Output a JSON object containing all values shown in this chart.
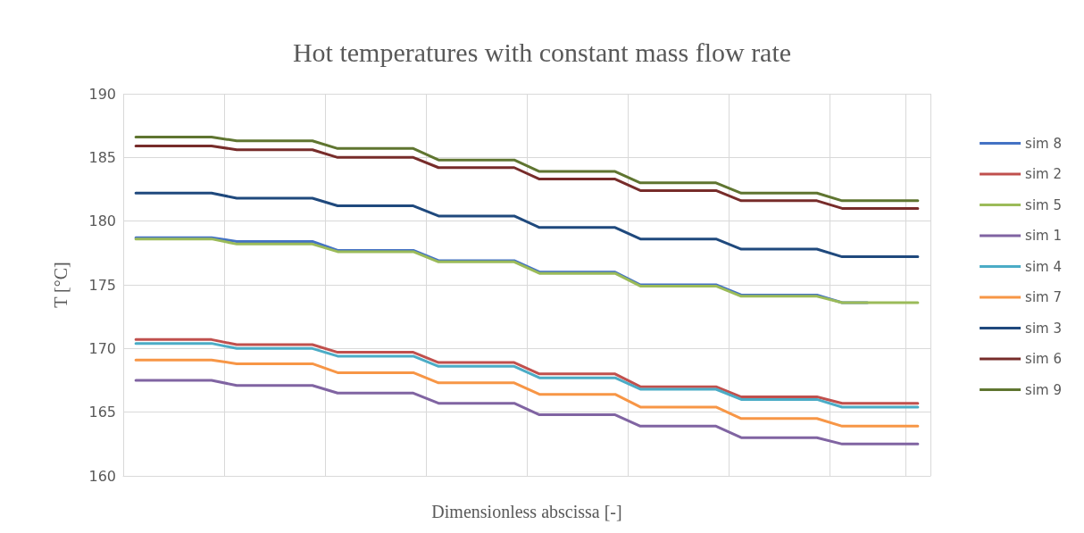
{
  "chart_data": {
    "type": "line",
    "title": "Hot temperatures with constant mass flow rate",
    "xlabel": "Dimensionless abscissa [-]",
    "ylabel": "T [°C]",
    "categories": [
      null,
      null,
      null,
      null,
      null,
      null,
      null,
      null,
      null,
      null,
      null,
      null,
      null,
      null,
      null,
      null,
      null,
      null,
      null,
      null,
      null,
      null,
      null,
      null,
      null,
      null,
      null,
      null,
      null,
      null,
      null,
      null
    ],
    "series": [
      {
        "name": "sim 8",
        "color": "#4472c4",
        "values": [
          178.7,
          178.7,
          178.7,
          178.7,
          178.4,
          178.4,
          178.4,
          178.4,
          177.7,
          177.7,
          177.7,
          177.7,
          176.9,
          176.9,
          176.9,
          176.9,
          176.0,
          176.0,
          176.0,
          176.0,
          175.0,
          175.0,
          175.0,
          175.0,
          174.2,
          174.2,
          174.2,
          174.2,
          173.6,
          173.6,
          null,
          null
        ]
      },
      {
        "name": "sim 2",
        "color": "#c0504d",
        "values": [
          170.7,
          170.7,
          170.7,
          170.7,
          170.3,
          170.3,
          170.3,
          170.3,
          169.7,
          169.7,
          169.7,
          169.7,
          168.9,
          168.9,
          168.9,
          168.9,
          168.0,
          168.0,
          168.0,
          168.0,
          167.0,
          167.0,
          167.0,
          167.0,
          166.2,
          166.2,
          166.2,
          166.2,
          165.7,
          165.7,
          165.7,
          165.7
        ]
      },
      {
        "name": "sim 5",
        "color": "#9bbb59",
        "values": [
          178.6,
          178.6,
          178.6,
          178.6,
          178.2,
          178.2,
          178.2,
          178.2,
          177.6,
          177.6,
          177.6,
          177.6,
          176.8,
          176.8,
          176.8,
          176.8,
          175.9,
          175.9,
          175.9,
          175.9,
          174.9,
          174.9,
          174.9,
          174.9,
          174.1,
          174.1,
          174.1,
          174.1,
          173.6,
          173.6,
          173.6,
          173.6
        ]
      },
      {
        "name": "sim 1",
        "color": "#8064a2",
        "values": [
          167.5,
          167.5,
          167.5,
          167.5,
          167.1,
          167.1,
          167.1,
          167.1,
          166.5,
          166.5,
          166.5,
          166.5,
          165.7,
          165.7,
          165.7,
          165.7,
          164.8,
          164.8,
          164.8,
          164.8,
          163.9,
          163.9,
          163.9,
          163.9,
          163.0,
          163.0,
          163.0,
          163.0,
          162.5,
          162.5,
          162.5,
          162.5
        ]
      },
      {
        "name": "sim 4",
        "color": "#4bacc6",
        "values": [
          170.4,
          170.4,
          170.4,
          170.4,
          170.0,
          170.0,
          170.0,
          170.0,
          169.4,
          169.4,
          169.4,
          169.4,
          168.6,
          168.6,
          168.6,
          168.6,
          167.7,
          167.7,
          167.7,
          167.7,
          166.8,
          166.8,
          166.8,
          166.8,
          166.0,
          166.0,
          166.0,
          166.0,
          165.4,
          165.4,
          165.4,
          165.4
        ]
      },
      {
        "name": "sim 7",
        "color": "#f79646",
        "values": [
          169.1,
          169.1,
          169.1,
          169.1,
          168.8,
          168.8,
          168.8,
          168.8,
          168.1,
          168.1,
          168.1,
          168.1,
          167.3,
          167.3,
          167.3,
          167.3,
          166.4,
          166.4,
          166.4,
          166.4,
          165.4,
          165.4,
          165.4,
          165.4,
          164.5,
          164.5,
          164.5,
          164.5,
          163.9,
          163.9,
          163.9,
          163.9
        ]
      },
      {
        "name": "sim 3",
        "color": "#1f497d",
        "values": [
          182.2,
          182.2,
          182.2,
          182.2,
          181.8,
          181.8,
          181.8,
          181.8,
          181.2,
          181.2,
          181.2,
          181.2,
          180.4,
          180.4,
          180.4,
          180.4,
          179.5,
          179.5,
          179.5,
          179.5,
          178.6,
          178.6,
          178.6,
          178.6,
          177.8,
          177.8,
          177.8,
          177.8,
          177.2,
          177.2,
          177.2,
          177.2
        ]
      },
      {
        "name": "sim 6",
        "color": "#772c2a",
        "values": [
          185.9,
          185.9,
          185.9,
          185.9,
          185.6,
          185.6,
          185.6,
          185.6,
          185.0,
          185.0,
          185.0,
          185.0,
          184.2,
          184.2,
          184.2,
          184.2,
          183.3,
          183.3,
          183.3,
          183.3,
          182.4,
          182.4,
          182.4,
          182.4,
          181.6,
          181.6,
          181.6,
          181.6,
          181.0,
          181.0,
          181.0,
          181.0
        ]
      },
      {
        "name": "sim 9",
        "color": "#5f7530",
        "values": [
          186.6,
          186.6,
          186.6,
          186.6,
          186.3,
          186.3,
          186.3,
          186.3,
          185.7,
          185.7,
          185.7,
          185.7,
          184.8,
          184.8,
          184.8,
          184.8,
          183.9,
          183.9,
          183.9,
          183.9,
          183.0,
          183.0,
          183.0,
          183.0,
          182.2,
          182.2,
          182.2,
          182.2,
          181.6,
          181.6,
          181.6,
          181.6
        ]
      }
    ],
    "ylim": [
      160,
      190
    ],
    "yticks": [
      160,
      165,
      170,
      175,
      180,
      185,
      190
    ],
    "grid": true,
    "legend": "right",
    "marker": "none",
    "line_style": "solid",
    "tick_labels": "y"
  }
}
